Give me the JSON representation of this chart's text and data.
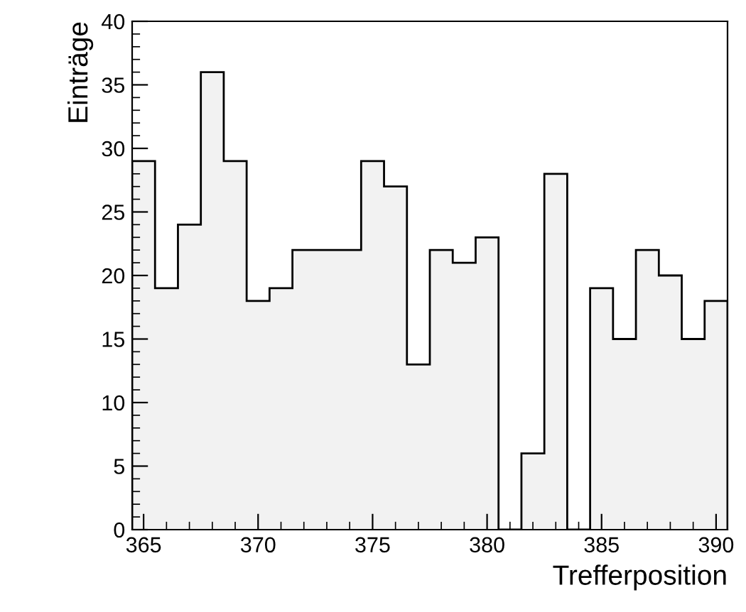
{
  "chart_data": {
    "type": "histogram",
    "xlabel": "Trefferposition",
    "ylabel": "Einträge",
    "bins": [
      364.5,
      365.5,
      366.5,
      367.5,
      368.5,
      369.5,
      370.5,
      371.5,
      372.5,
      373.5,
      374.5,
      375.5,
      376.5,
      377.5,
      378.5,
      379.5,
      380.5,
      381.5,
      382.5,
      383.5,
      384.5,
      385.5,
      386.5,
      387.5,
      388.5,
      389.5,
      390.5
    ],
    "values": [
      29,
      19,
      24,
      36,
      29,
      18,
      19,
      22,
      22,
      22,
      29,
      27,
      13,
      22,
      21,
      23,
      0,
      6,
      28,
      0,
      19,
      15,
      22,
      20,
      15,
      18
    ],
    "color": "#f2f2f2",
    "xlim": [
      364.5,
      390.5
    ],
    "ylim": [
      0,
      40
    ],
    "xticks": [
      365,
      370,
      375,
      380,
      385,
      390
    ],
    "yticks": [
      0,
      5,
      10,
      15,
      20,
      25,
      30,
      35,
      40
    ],
    "grid": false
  }
}
